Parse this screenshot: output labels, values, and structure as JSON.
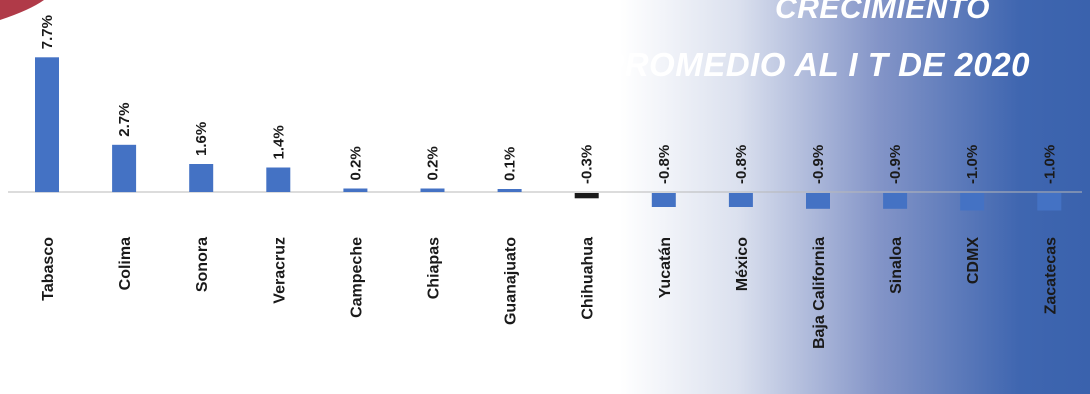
{
  "title": {
    "line1": "CRECIMIENTO",
    "line2": "PROMEDIO AL I T DE 2020"
  },
  "colors": {
    "bar_positive": "#4472c4",
    "bar_highlight": "#1a1a1a",
    "axis": "#b8b8b8",
    "label_text": "#1a1a1a",
    "title_text": "#ffffff",
    "corner_accent": "#b03a48",
    "gradient_end": "#3a62ad"
  },
  "chart_data": {
    "type": "bar",
    "title": "CRECIMIENTO PROMEDIO AL I T DE 2020",
    "categories": [
      "Tabasco",
      "Colima",
      "Sonora",
      "Veracruz",
      "Campeche",
      "Chiapas",
      "Guanajuato",
      "Chihuahua",
      "Yucatán",
      "México",
      "Baja California",
      "Sinaloa",
      "CDMX",
      "Zacatecas"
    ],
    "values": [
      7.7,
      2.7,
      1.6,
      1.4,
      0.2,
      0.2,
      0.1,
      -0.3,
      -0.8,
      -0.8,
      -0.9,
      -0.9,
      -1.0,
      -1.0
    ],
    "data_labels": [
      "7.7%",
      "2.7%",
      "1.6%",
      "1.4%",
      "0.2%",
      "0.2%",
      "0.1%",
      "-0.3%",
      "-0.8%",
      "-0.8%",
      "-0.9%",
      "-0.9%",
      "-1.0%",
      "-1.0%"
    ],
    "highlight_category": "Chihuahua",
    "xlabel": "",
    "ylabel": "",
    "grid": false,
    "legend": "none",
    "label_orientation": "vertical"
  }
}
